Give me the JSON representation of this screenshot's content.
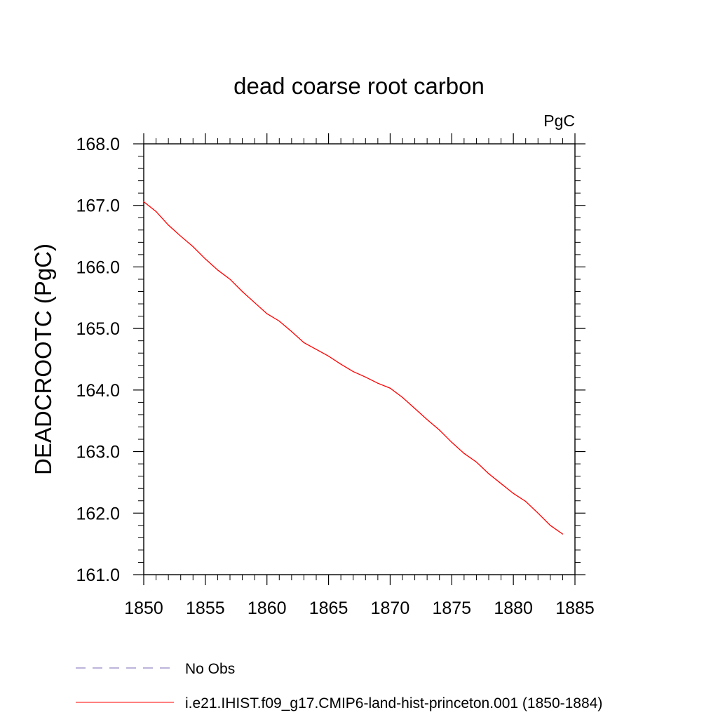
{
  "chart_data": {
    "type": "line",
    "title": "dead coarse root carbon",
    "units_label": "PgC",
    "xlabel": "",
    "ylabel": "DEADCROOTC  (PgC)",
    "xlim": [
      1850,
      1885
    ],
    "ylim": [
      161.0,
      168.0
    ],
    "xticks": [
      "1850",
      "1855",
      "1860",
      "1865",
      "1870",
      "1875",
      "1880",
      "1885"
    ],
    "yticks": [
      "161.0",
      "162.0",
      "163.0",
      "164.0",
      "165.0",
      "166.0",
      "167.0",
      "168.0"
    ],
    "grid": false,
    "legend_placement": "bottom",
    "series": [
      {
        "name": "No Obs",
        "color": "#7b68b5",
        "dash": "dashed",
        "x": [],
        "y": []
      },
      {
        "name": "i.e21.IHIST.f09_g17.CMIP6-land-hist-princeton.001 (1850-1884)",
        "color": "#ff0000",
        "dash": "solid",
        "x": [
          1850,
          1851,
          1852,
          1853,
          1854,
          1855,
          1856,
          1857,
          1858,
          1859,
          1860,
          1861,
          1862,
          1863,
          1864,
          1865,
          1866,
          1867,
          1868,
          1869,
          1870,
          1871,
          1872,
          1873,
          1874,
          1875,
          1876,
          1877,
          1878,
          1879,
          1880,
          1881,
          1882,
          1883,
          1884
        ],
        "y": [
          167.06,
          166.9,
          166.68,
          166.5,
          166.33,
          166.13,
          165.95,
          165.8,
          165.6,
          165.42,
          165.24,
          165.12,
          164.95,
          164.77,
          164.66,
          164.55,
          164.42,
          164.3,
          164.21,
          164.11,
          164.03,
          163.88,
          163.7,
          163.52,
          163.35,
          163.15,
          162.97,
          162.83,
          162.64,
          162.48,
          162.32,
          162.19,
          162.0,
          161.8,
          161.66
        ]
      }
    ]
  }
}
